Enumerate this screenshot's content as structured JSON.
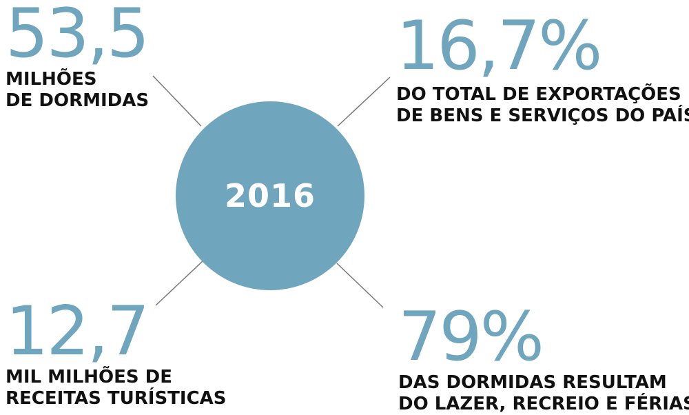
{
  "center": {
    "year": "2016"
  },
  "stats": {
    "top_left": {
      "value": "53,5",
      "label_line1": "MILHÕES",
      "label_line2": "DE DORMIDAS"
    },
    "top_right": {
      "value": "16,7%",
      "label_line1": "DO TOTAL DE EXPORTAÇÕES",
      "label_line2": "DE BENS E SERVIÇOS DO PAÍS"
    },
    "bottom_left": {
      "value": "12,7",
      "label_line1": "MIL MILHÕES DE",
      "label_line2": "RECEITAS TURÍSTICAS"
    },
    "bottom_right": {
      "value": "79%",
      "label_line1": "DAS DORMIDAS RESULTAM",
      "label_line2": "DO LAZER, RECREIO E FÉRIAS"
    }
  },
  "colors": {
    "accent": "#6fa5bd",
    "text": "#111111",
    "connector": "#777777"
  }
}
